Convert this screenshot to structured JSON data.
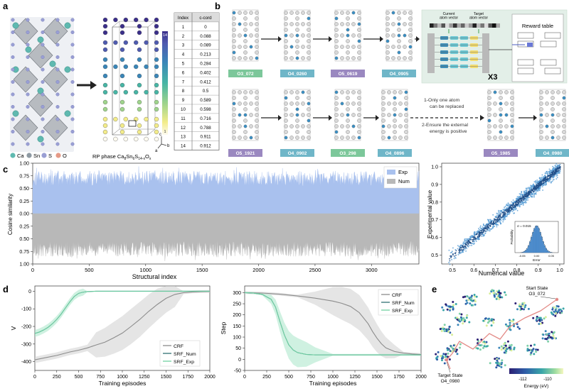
{
  "panel_labels": {
    "a": "a",
    "b": "b",
    "c": "c",
    "d": "d",
    "e": "e"
  },
  "panel_a": {
    "legend": [
      {
        "label": "Ca",
        "color": "#5fb9b0"
      },
      {
        "label": "Sn",
        "color": "#8e9aa3"
      },
      {
        "label": "S",
        "color": "#9a9fd4"
      },
      {
        "label": "O",
        "color": "#e59a87"
      }
    ],
    "caption_prefix": "RP phase Ca",
    "caption_formula": [
      {
        "t": "8",
        "sub": true
      },
      {
        "t": "Sn",
        "sub": false
      },
      {
        "t": "6",
        "sub": true
      },
      {
        "t": "S",
        "sub": false
      },
      {
        "t": "14-x",
        "sub": true
      },
      {
        "t": "O",
        "sub": false
      },
      {
        "t": "x",
        "sub": true
      }
    ],
    "axes": {
      "c": "c",
      "b": "b",
      "a": "a"
    },
    "colorbar": {
      "top": "14",
      "bottom": "1"
    },
    "table": {
      "headers": [
        "Index",
        "c-cord"
      ],
      "rows": [
        [
          "1",
          "0"
        ],
        [
          "2",
          "0.088"
        ],
        [
          "3",
          "0.089"
        ],
        [
          "4",
          "0.213"
        ],
        [
          "5",
          "0.284"
        ],
        [
          "6",
          "0.402"
        ],
        [
          "7",
          "0.412"
        ],
        [
          "8",
          "0.5"
        ],
        [
          "9",
          "0.589"
        ],
        [
          "10",
          "0.598"
        ],
        [
          "11",
          "0.716"
        ],
        [
          "12",
          "0.788"
        ],
        [
          "13",
          "0.911"
        ],
        [
          "14",
          "0.912"
        ]
      ]
    }
  },
  "panel_b": {
    "row1_states": [
      {
        "label": "O3_072",
        "color": "#7cc79a"
      },
      {
        "label": "O4_0260",
        "color": "#6fb6c8"
      },
      {
        "label": "O5_0619",
        "color": "#9a88c0"
      },
      {
        "label": "O4_0905",
        "color": "#6fb6c8"
      }
    ],
    "row2_states": [
      {
        "label": "O5_1921",
        "color": "#9a88c0"
      },
      {
        "label": "O4_0902",
        "color": "#6fb6c8"
      },
      {
        "label": "O3_298",
        "color": "#7cc79a"
      },
      {
        "label": "O4_0896",
        "color": "#6fb6c8"
      },
      {
        "label": "O5_1985",
        "color": "#9a88c0"
      },
      {
        "label": "O4_0980",
        "color": "#6fb6c8"
      }
    ],
    "network": {
      "current_label": "Current\natom vector",
      "target_label": "Target\natom vector",
      "repeat": "X3",
      "reward_table": "Reward table"
    },
    "rules": [
      "1-Only one atom",
      "can be replaced",
      "2-Ensure the external",
      "energy is positive"
    ]
  },
  "panel_c": {
    "ylabel": "Cosine similarity",
    "xlabel": "Structural index",
    "yticks": [
      "1.00",
      "0.75",
      "0.50",
      "0.25",
      "0.00",
      "0.25",
      "0.50",
      "0.75",
      "1.00"
    ],
    "xticks": [
      "0",
      "500",
      "1000",
      "1500",
      "2000",
      "2500",
      "3000"
    ],
    "legend": [
      {
        "label": "Exp",
        "color": "#a9c1ee"
      },
      {
        "label": "Num",
        "color": "#b8b8b8"
      }
    ],
    "scatter": {
      "xlabel": "Numerical value",
      "ylabel": "Experimental value",
      "ticks": [
        "0.5",
        "0.6",
        "0.7",
        "0.8",
        "0.9",
        "1.0"
      ],
      "inset": {
        "sigma": "σ = 0.015",
        "xlabel": "Error",
        "ylabel": "Probability",
        "xticks": [
          "-0.05",
          "0.00",
          "0.05"
        ]
      }
    }
  },
  "chart_data": [
    {
      "type": "area",
      "panel": "c",
      "xlabel": "Structural index",
      "ylabel": "Cosine similarity",
      "xlim": [
        0,
        3420
      ],
      "ylim": [
        -1.0,
        1.0
      ],
      "series": [
        {
          "name": "Exp",
          "color": "#a9c1ee",
          "typical_range": [
            0.55,
            0.85
          ],
          "max": 1.0
        },
        {
          "name": "Num",
          "color": "#b8b8b8",
          "typical_range": [
            0.55,
            0.85
          ],
          "max": 1.0
        }
      ]
    },
    {
      "type": "scatter",
      "panel": "c-right",
      "xlabel": "Numerical value",
      "ylabel": "Experimental value",
      "xlim": [
        0.45,
        1.02
      ],
      "ylim": [
        0.45,
        1.02
      ],
      "trend": "y = x",
      "error_sigma": 0.015
    },
    {
      "type": "line",
      "panel": "d-left",
      "xlabel": "Training episodes",
      "ylabel": "V",
      "xlim": [
        0,
        2000
      ],
      "ylim": [
        -450,
        30
      ],
      "xticks": [
        0,
        250,
        500,
        750,
        1000,
        1250,
        1500,
        1750,
        2000
      ],
      "yticks": [
        0,
        -100,
        -200,
        -300,
        -400
      ],
      "series": [
        {
          "name": "CRF",
          "color": "#8c8c8c",
          "x": [
            0,
            100,
            250,
            400,
            500,
            600,
            700,
            800,
            900,
            1000,
            1100,
            1200,
            1300,
            1400,
            1500,
            1600,
            1700,
            1800,
            1900,
            2000
          ],
          "y": [
            -390,
            -380,
            -365,
            -345,
            -335,
            -322,
            -305,
            -290,
            -265,
            -238,
            -200,
            -160,
            -115,
            -75,
            -40,
            -18,
            -8,
            -4,
            -2,
            -1
          ]
        },
        {
          "name": "SRF_Num",
          "color": "#2f6f73",
          "x": [
            0,
            50,
            100,
            150,
            200,
            250,
            300,
            350,
            400,
            450,
            500,
            550,
            600,
            700,
            800,
            1000,
            1500,
            2000
          ],
          "y": [
            -240,
            -232,
            -220,
            -205,
            -185,
            -160,
            -130,
            -95,
            -60,
            -30,
            -12,
            -5,
            -2,
            0,
            0,
            0,
            0,
            0
          ]
        },
        {
          "name": "SRF_Exp",
          "color": "#6fd1a2",
          "x": [
            0,
            50,
            100,
            150,
            200,
            250,
            300,
            350,
            400,
            450,
            500,
            550,
            600,
            700,
            800,
            1000,
            1500,
            2000
          ],
          "y": [
            -240,
            -232,
            -220,
            -205,
            -185,
            -160,
            -130,
            -95,
            -60,
            -30,
            -12,
            -5,
            -2,
            0,
            0,
            0,
            0,
            0
          ]
        }
      ]
    },
    {
      "type": "line",
      "panel": "d-right",
      "xlabel": "Training episodes",
      "ylabel": "Step",
      "xlim": [
        0,
        2000
      ],
      "ylim": [
        -50,
        330
      ],
      "xticks": [
        0,
        250,
        500,
        750,
        1000,
        1250,
        1500,
        1750,
        2000
      ],
      "yticks": [
        300,
        250,
        200,
        150,
        100,
        50,
        0,
        -50
      ],
      "series": [
        {
          "name": "CRF",
          "color": "#8c8c8c",
          "x": [
            0,
            200,
            400,
            600,
            800,
            1000,
            1100,
            1200,
            1300,
            1400,
            1450,
            1500,
            1550,
            1600,
            1700,
            1800,
            1900,
            2000
          ],
          "y": [
            300,
            298,
            293,
            285,
            275,
            262,
            252,
            238,
            210,
            160,
            125,
            95,
            70,
            52,
            35,
            28,
            24,
            22
          ]
        },
        {
          "name": "SRF_Num",
          "color": "#2f6f73",
          "x": [
            0,
            100,
            200,
            300,
            350,
            400,
            450,
            500,
            550,
            600,
            700,
            800,
            1000,
            1500,
            2000
          ],
          "y": [
            300,
            298,
            292,
            270,
            235,
            170,
            110,
            65,
            42,
            30,
            22,
            20,
            20,
            20,
            20
          ]
        },
        {
          "name": "SRF_Exp",
          "color": "#6fd1a2",
          "x": [
            0,
            100,
            200,
            300,
            350,
            400,
            450,
            500,
            550,
            600,
            700,
            800,
            1000,
            1500,
            2000
          ],
          "y": [
            300,
            298,
            292,
            270,
            235,
            170,
            110,
            65,
            42,
            30,
            22,
            20,
            20,
            20,
            20
          ]
        }
      ]
    }
  ],
  "panel_e": {
    "start_label": "Start State",
    "start_state": "O3_072",
    "target_label": "Target State",
    "target_state": "O4_0980",
    "colorbar_ticks": [
      "-112",
      "-110"
    ],
    "colorbar_label": "Energy (eV)"
  }
}
